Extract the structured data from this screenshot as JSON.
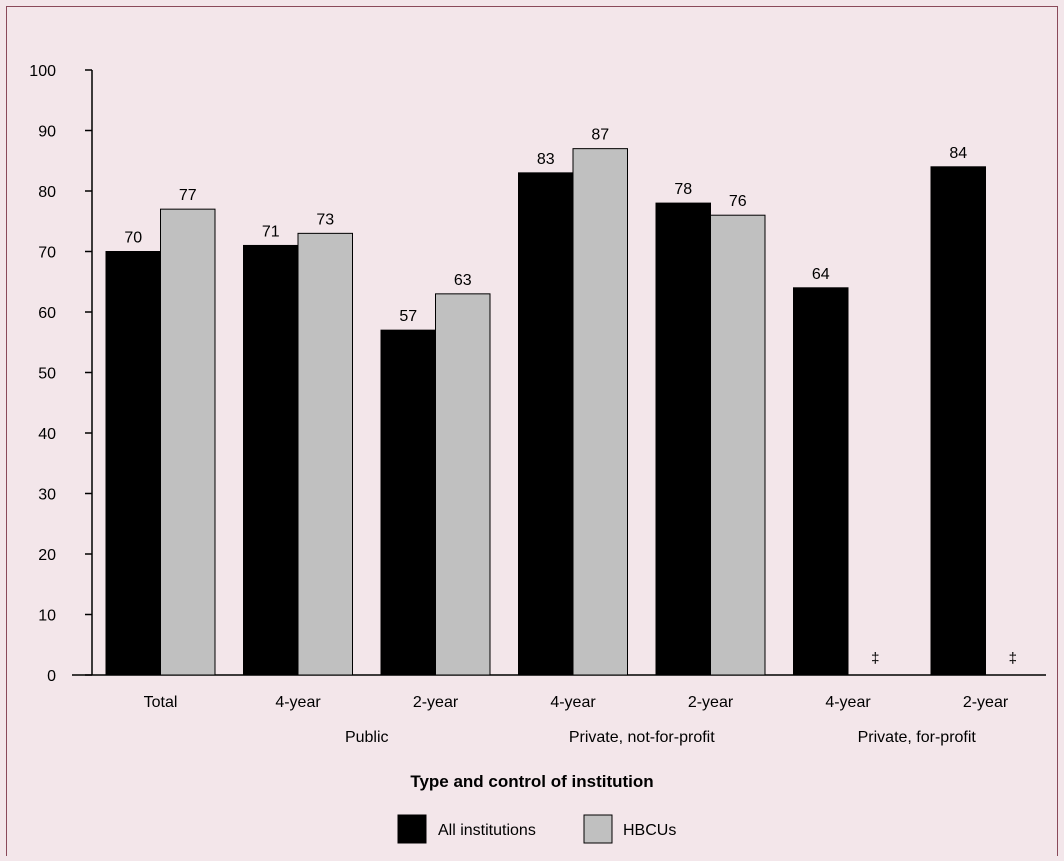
{
  "chart_data": {
    "type": "bar",
    "categories": [
      "Total",
      "4-year",
      "2-year",
      "4-year",
      "2-year",
      "4-year",
      "2-year"
    ],
    "groups": [
      {
        "label": "",
        "from": 0,
        "to": 0
      },
      {
        "label": "Public",
        "from": 1,
        "to": 2
      },
      {
        "label": "Private, not-for-profit",
        "from": 3,
        "to": 4
      },
      {
        "label": "Private, for-profit",
        "from": 5,
        "to": 6
      }
    ],
    "series": [
      {
        "name": "All institutions",
        "color": "#000000",
        "values": [
          70,
          71,
          57,
          83,
          78,
          64,
          84
        ],
        "labels": [
          "70",
          "71",
          "57",
          "83",
          "78",
          "64",
          "84"
        ]
      },
      {
        "name": "HBCUs",
        "color": "#c0c0c0",
        "values": [
          77,
          73,
          63,
          87,
          76,
          null,
          null
        ],
        "labels": [
          "77",
          "73",
          "63",
          "87",
          "76",
          "‡",
          "‡"
        ]
      }
    ],
    "ylim": [
      0,
      100
    ],
    "yticks": [
      0,
      10,
      20,
      30,
      40,
      50,
      60,
      70,
      80,
      90,
      100
    ],
    "xlabel": "Type and control of institution",
    "ylabel": "",
    "legend": "bottom-center",
    "grid": false
  }
}
